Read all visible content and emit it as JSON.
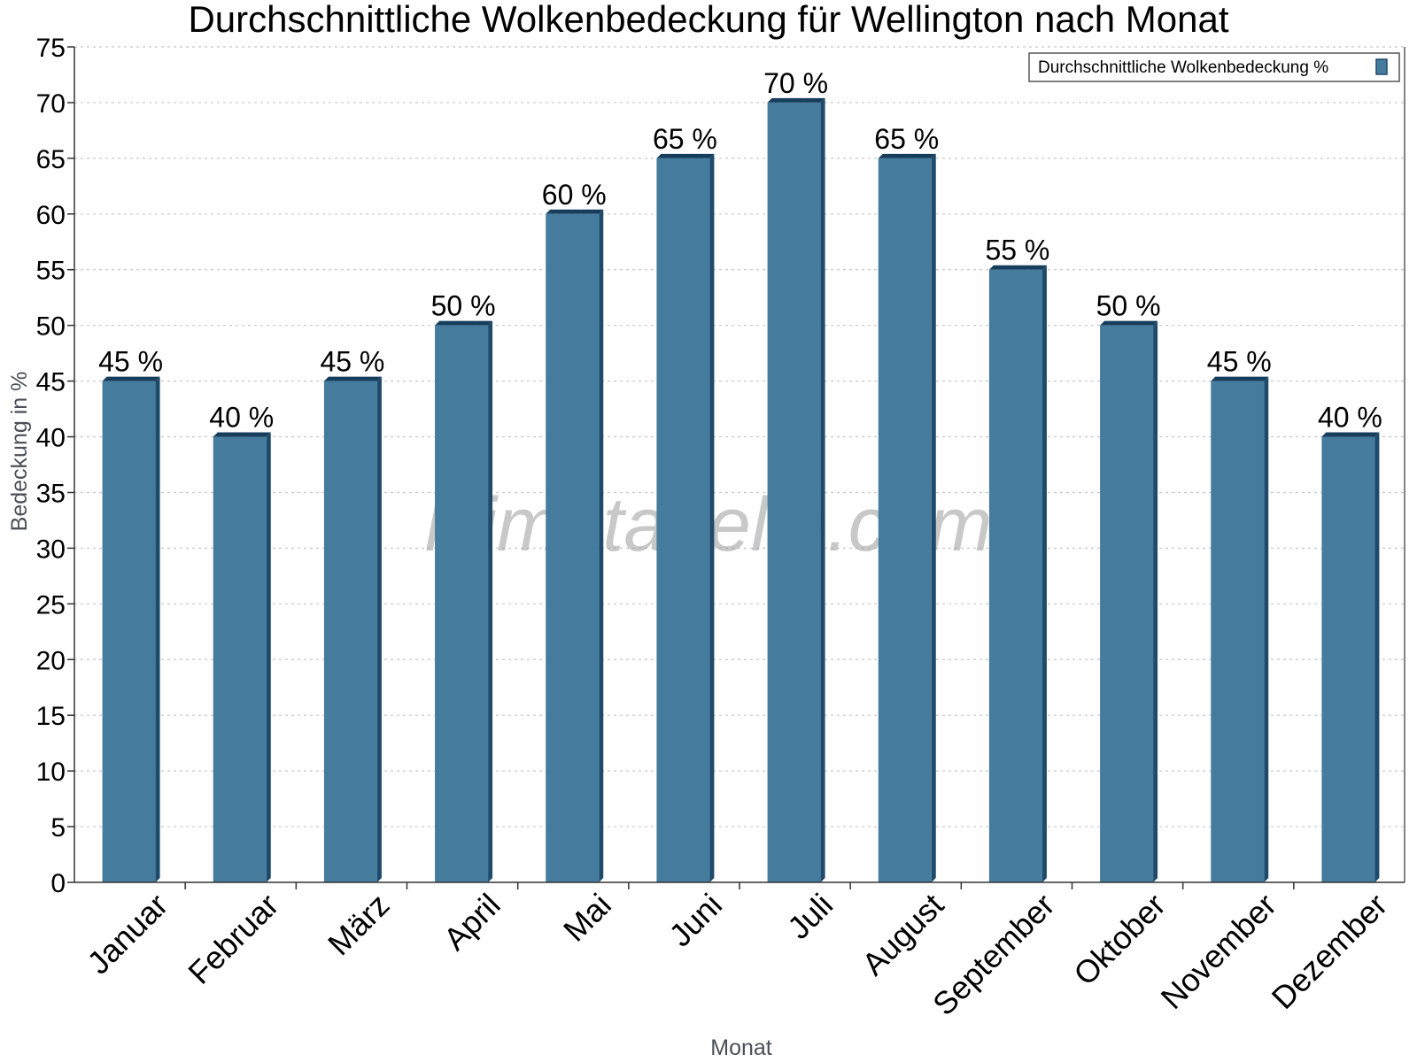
{
  "watermark": "klimatabelle.com",
  "colors": {
    "bar_front": "#457b9d",
    "bar_side": "#1e4a6b",
    "bar_top": "#163e5c",
    "grid": "#c8c8c8",
    "axis": "#333333"
  },
  "chart_data": {
    "type": "bar",
    "title": "Durchschnittliche Wolkenbedeckung für Wellington nach Monat",
    "xlabel": "Monat",
    "ylabel": "Bedeckung in %",
    "ylim": [
      0,
      75
    ],
    "ytick_step": 5,
    "yticks": [
      "0",
      "5",
      "10",
      "15",
      "20",
      "25",
      "30",
      "35",
      "40",
      "45",
      "50",
      "55",
      "60",
      "65",
      "70",
      "75"
    ],
    "grid": true,
    "legend": {
      "position": "top-right",
      "label": "Durchschnittliche Wolkenbedeckung %"
    },
    "categories": [
      "Januar",
      "Februar",
      "März",
      "April",
      "Mai",
      "Juni",
      "Juli",
      "August",
      "September",
      "Oktober",
      "November",
      "Dezember"
    ],
    "series": [
      {
        "name": "Durchschnittliche Wolkenbedeckung %",
        "values": [
          45,
          40,
          45,
          50,
          60,
          65,
          70,
          65,
          55,
          50,
          45,
          40
        ],
        "labels": [
          "45 %",
          "40 %",
          "45 %",
          "50 %",
          "60 %",
          "65 %",
          "70 %",
          "65 %",
          "55 %",
          "50 %",
          "45 %",
          "40 %"
        ]
      }
    ]
  }
}
